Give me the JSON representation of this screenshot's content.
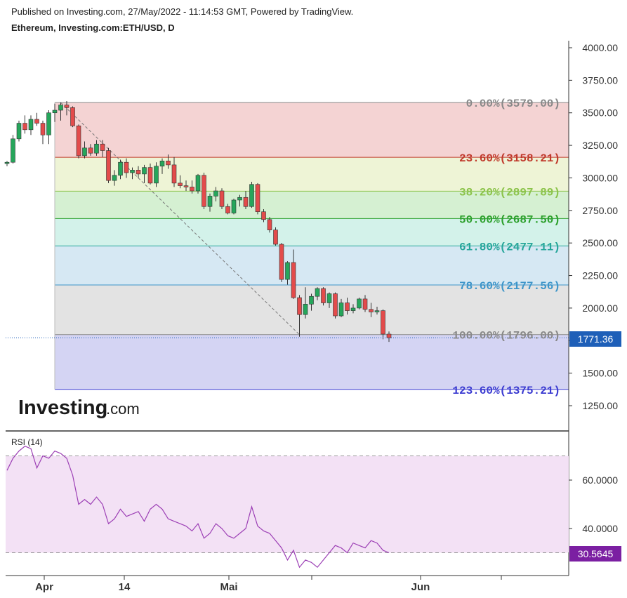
{
  "header": {
    "published": "Published on Investing.com, 27/May/2022 - 11:14:53 GMT, Powered by TradingView.",
    "symbol": "Ethereum, Investing.com:ETH/USD, D"
  },
  "logo": {
    "brand": "Investing",
    "suffix": ".com"
  },
  "colors": {
    "up": "#26a65b",
    "down": "#e34b4b",
    "rsi_line": "#9c3fb5",
    "rsi_band": "#f3e1f5",
    "price_badge": "#1e5fb8",
    "rsi_badge": "#7b1fa2"
  },
  "chart_data": [
    {
      "type": "candlestick",
      "title": "",
      "xlabel": "",
      "ylabel": "",
      "x_ticks": [
        "Apr",
        "14",
        "Mai",
        "Jun"
      ],
      "y_ticks": [
        "4000.00",
        "3750.00",
        "3500.00",
        "3250.00",
        "3000.00",
        "2750.00",
        "2500.00",
        "2250.00",
        "2000.00",
        "1750.00",
        "1500.00",
        "1250.00"
      ],
      "ylim": [
        1000,
        4050
      ],
      "last_price": "1771.36",
      "fibonacci": [
        {
          "label": "0.00%(3579.00)",
          "price": 3579.0,
          "color": "#888888",
          "fill": "#f4d3d3"
        },
        {
          "label": "23.60%(3158.21)",
          "price": 3158.21,
          "color": "#c0392b",
          "fill": "#eef4d6"
        },
        {
          "label": "38.20%(2897.89)",
          "price": 2897.89,
          "color": "#8bc34a",
          "fill": "#d5f0d2"
        },
        {
          "label": "50.00%(2687.50)",
          "price": 2687.5,
          "color": "#2ca02c",
          "fill": "#d3f2ea"
        },
        {
          "label": "61.80%(2477.11)",
          "price": 2477.11,
          "color": "#26a69a",
          "fill": "#d6e8f3"
        },
        {
          "label": "78.60%(2177.56)",
          "price": 2177.56,
          "color": "#3d95c9",
          "fill": "#e3e3e3"
        },
        {
          "label": "100.00%(1796.00)",
          "price": 1796.0,
          "color": "#888888",
          "fill": "#d4d4f3"
        },
        {
          "label": "123.60%(1375.21)",
          "price": 1375.21,
          "color": "#3b3bd1",
          "fill": null
        }
      ],
      "candles": [
        [
          3110,
          3130,
          3090,
          3120
        ],
        [
          3120,
          3330,
          3110,
          3300
        ],
        [
          3300,
          3440,
          3280,
          3420
        ],
        [
          3420,
          3480,
          3340,
          3370
        ],
        [
          3370,
          3480,
          3330,
          3450
        ],
        [
          3450,
          3500,
          3400,
          3420
        ],
        [
          3420,
          3440,
          3260,
          3330
        ],
        [
          3330,
          3520,
          3260,
          3500
        ],
        [
          3500,
          3570,
          3430,
          3520
        ],
        [
          3520,
          3580,
          3440,
          3560
        ],
        [
          3560,
          3590,
          3480,
          3540
        ],
        [
          3540,
          3550,
          3390,
          3400
        ],
        [
          3400,
          3410,
          3150,
          3170
        ],
        [
          3170,
          3280,
          3150,
          3230
        ],
        [
          3230,
          3260,
          3170,
          3190
        ],
        [
          3190,
          3290,
          3170,
          3260
        ],
        [
          3260,
          3290,
          3160,
          3210
        ],
        [
          3210,
          3230,
          2960,
          2980
        ],
        [
          2980,
          3060,
          2940,
          3020
        ],
        [
          3020,
          3140,
          2990,
          3120
        ],
        [
          3120,
          3150,
          3000,
          3040
        ],
        [
          3040,
          3080,
          2990,
          3060
        ],
        [
          3060,
          3090,
          3000,
          3030
        ],
        [
          3030,
          3100,
          2960,
          3080
        ],
        [
          3080,
          3110,
          2950,
          2960
        ],
        [
          2960,
          3120,
          2930,
          3090
        ],
        [
          3090,
          3150,
          3030,
          3130
        ],
        [
          3130,
          3180,
          3070,
          3100
        ],
        [
          3100,
          3160,
          2930,
          2960
        ],
        [
          2960,
          3020,
          2920,
          2940
        ],
        [
          2940,
          2980,
          2900,
          2930
        ],
        [
          2930,
          2980,
          2880,
          2900
        ],
        [
          2900,
          3030,
          2880,
          3020
        ],
        [
          3020,
          3040,
          2760,
          2780
        ],
        [
          2780,
          2880,
          2740,
          2860
        ],
        [
          2860,
          2930,
          2820,
          2900
        ],
        [
          2900,
          2920,
          2760,
          2780
        ],
        [
          2780,
          2800,
          2720,
          2730
        ],
        [
          2730,
          2840,
          2720,
          2830
        ],
        [
          2830,
          2870,
          2780,
          2850
        ],
        [
          2850,
          2900,
          2760,
          2780
        ],
        [
          2780,
          2970,
          2770,
          2950
        ],
        [
          2950,
          2960,
          2720,
          2740
        ],
        [
          2740,
          2760,
          2660,
          2680
        ],
        [
          2680,
          2700,
          2580,
          2600
        ],
        [
          2600,
          2620,
          2480,
          2490
        ],
        [
          2490,
          2500,
          2200,
          2220
        ],
        [
          2220,
          2360,
          2180,
          2350
        ],
        [
          2350,
          2450,
          2070,
          2080
        ],
        [
          2080,
          2100,
          1780,
          1950
        ],
        [
          1950,
          2160,
          1920,
          2030
        ],
        [
          2030,
          2110,
          1980,
          2090
        ],
        [
          2090,
          2160,
          2060,
          2150
        ],
        [
          2150,
          2160,
          2020,
          2040
        ],
        [
          2040,
          2120,
          2000,
          2110
        ],
        [
          2110,
          2120,
          1920,
          1940
        ],
        [
          1940,
          2070,
          1930,
          2040
        ],
        [
          2040,
          2080,
          1950,
          1980
        ],
        [
          1980,
          2030,
          1960,
          2000
        ],
        [
          2000,
          2080,
          1990,
          2070
        ],
        [
          2070,
          2100,
          1970,
          1990
        ],
        [
          1990,
          2040,
          1930,
          1970
        ],
        [
          1970,
          2010,
          1950,
          1980
        ],
        [
          1980,
          1990,
          1760,
          1800
        ],
        [
          1800,
          1820,
          1740,
          1771
        ]
      ]
    },
    {
      "type": "line",
      "title": "RSI (14)",
      "y_ticks": [
        "60.0000",
        "40.0000"
      ],
      "ylim": [
        20,
        80
      ],
      "band": [
        30,
        70
      ],
      "last_value": "30.5645",
      "series": [
        {
          "name": "",
          "values": [
            64,
            69,
            72,
            74,
            73,
            65,
            70,
            69,
            72,
            71,
            69,
            62,
            50,
            52,
            50,
            53,
            50,
            42,
            44,
            48,
            45,
            46,
            47,
            43,
            48,
            50,
            48,
            44,
            43,
            42,
            41,
            39,
            42,
            36,
            38,
            42,
            40,
            37,
            36,
            38,
            40,
            49,
            41,
            39,
            38,
            35,
            32,
            27,
            31,
            24,
            27,
            26,
            24,
            27,
            30,
            33,
            32,
            30,
            34,
            33,
            32,
            35,
            34,
            31,
            30
          ]
        }
      ]
    }
  ]
}
